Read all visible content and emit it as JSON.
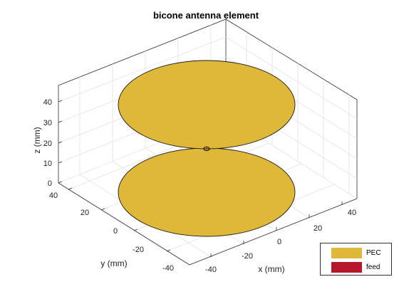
{
  "figure": {
    "title": "bicone antenna element",
    "xlabel": "x (mm)",
    "ylabel": "y (mm)",
    "zlabel": "z (mm)",
    "x_ticks": [
      "-40",
      "-20",
      "0",
      "20",
      "40"
    ],
    "y_ticks": [
      "40",
      "20",
      "0",
      "-20",
      "-40"
    ],
    "z_ticks": [
      "0",
      "10",
      "20",
      "30",
      "40"
    ]
  },
  "legend": {
    "items": [
      {
        "label": "PEC",
        "color": "#dfb83a"
      },
      {
        "label": "feed",
        "color": "#b5172b"
      }
    ]
  },
  "colors": {
    "pec": "#dfb83a",
    "feed": "#b5172b",
    "grid": "#e3e3e3",
    "axis": "#2a2a2a"
  }
}
